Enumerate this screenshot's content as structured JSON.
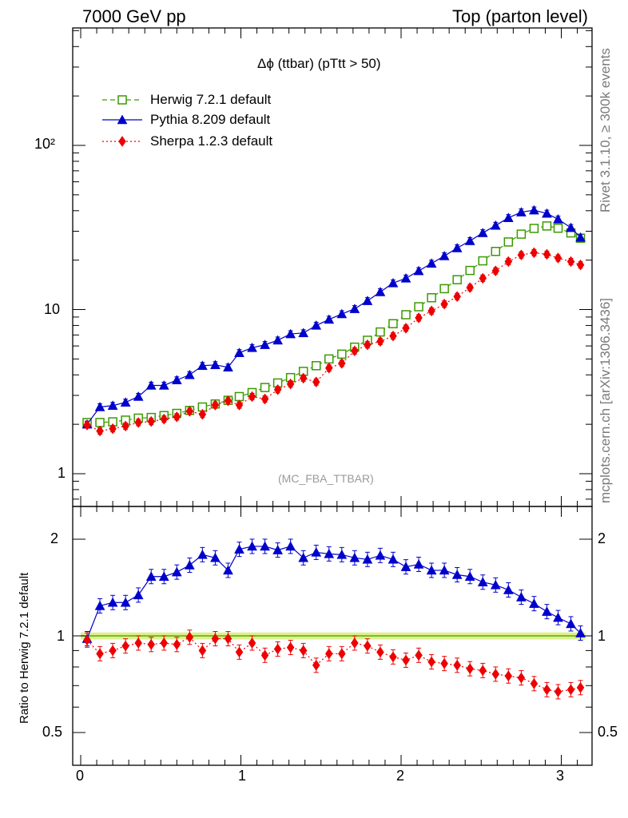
{
  "header": {
    "left": "7000 GeV pp",
    "right": "Top (parton level)"
  },
  "side_labels": {
    "rivet": "Rivet 3.1.10, ≥ 300k events",
    "mcplots": "mcplots.cern.ch [arXiv:1306.3436]"
  },
  "colors": {
    "herwig": "#3a9a00",
    "pythia": "#0000cc",
    "sherpa": "#ee0000",
    "band": "#ddf08a"
  },
  "chart_data": [
    {
      "type": "line",
      "title": "Δϕ (ttbar) (pTtt > 50)",
      "watermark": "(MC_FBA_TTBAR)",
      "xlim": [
        -0.06,
        3.2
      ],
      "ylim": [
        0.6,
        580
      ],
      "yscale": "log",
      "x_ticks": [
        "0",
        "1",
        "2",
        "3"
      ],
      "y_ticks": [
        "1",
        "10",
        "10²"
      ],
      "legend_position": "top-left",
      "x": [
        0.04,
        0.12,
        0.2,
        0.28,
        0.36,
        0.44,
        0.52,
        0.6,
        0.68,
        0.76,
        0.84,
        0.92,
        0.99,
        1.07,
        1.15,
        1.23,
        1.31,
        1.39,
        1.47,
        1.55,
        1.63,
        1.71,
        1.79,
        1.87,
        1.95,
        2.03,
        2.11,
        2.19,
        2.27,
        2.35,
        2.43,
        2.51,
        2.59,
        2.67,
        2.75,
        2.83,
        2.91,
        2.98,
        3.06,
        3.12
      ],
      "series": [
        {
          "name": "Herwig 7.2.1 default",
          "marker": "open-square",
          "values": [
            2.05,
            2.05,
            2.07,
            2.12,
            2.18,
            2.2,
            2.26,
            2.33,
            2.43,
            2.55,
            2.66,
            2.8,
            2.95,
            3.12,
            3.35,
            3.57,
            3.85,
            4.2,
            4.55,
            5.0,
            5.35,
            5.9,
            6.5,
            7.3,
            8.2,
            9.3,
            10.4,
            11.8,
            13.4,
            15.2,
            17.3,
            19.8,
            22.6,
            25.8,
            28.8,
            31.2,
            32.3,
            31.3,
            29.3,
            27.2
          ]
        },
        {
          "name": "Pythia 8.209 default",
          "marker": "filled-triangle",
          "values": [
            2.0,
            2.55,
            2.6,
            2.72,
            2.95,
            3.45,
            3.45,
            3.72,
            4.0,
            4.55,
            4.6,
            4.45,
            5.45,
            5.85,
            6.1,
            6.5,
            7.1,
            7.2,
            8.0,
            8.7,
            9.4,
            10.1,
            11.3,
            12.8,
            14.5,
            15.5,
            17.2,
            19.1,
            21.2,
            23.7,
            26.2,
            29.3,
            32.5,
            36.2,
            39.2,
            40.3,
            38.5,
            35.5,
            31.5,
            27.5
          ]
        },
        {
          "name": "Sherpa 1.2.3 default",
          "marker": "filled-diamond",
          "values": [
            1.98,
            1.82,
            1.88,
            1.95,
            2.05,
            2.08,
            2.15,
            2.22,
            2.4,
            2.3,
            2.62,
            2.78,
            2.62,
            2.95,
            2.85,
            3.25,
            3.52,
            3.82,
            3.62,
            4.4,
            4.7,
            5.6,
            6.1,
            6.4,
            6.9,
            7.7,
            8.9,
            9.8,
            10.8,
            12.0,
            13.6,
            15.5,
            17.2,
            19.6,
            21.5,
            22.2,
            21.7,
            20.6,
            19.6,
            18.7
          ]
        }
      ]
    },
    {
      "type": "line",
      "ylabel": "Ratio to Herwig 7.2.1 default",
      "xlim": [
        -0.06,
        3.2
      ],
      "ylim": [
        0.42,
        2.35
      ],
      "yscale": "log",
      "x_ticks": [
        "0",
        "1",
        "2",
        "3"
      ],
      "y_ticks": [
        "0.5",
        "1",
        "2"
      ],
      "reference": 1.0,
      "x": [
        0.04,
        0.12,
        0.2,
        0.28,
        0.36,
        0.44,
        0.52,
        0.6,
        0.68,
        0.76,
        0.84,
        0.92,
        0.99,
        1.07,
        1.15,
        1.23,
        1.31,
        1.39,
        1.47,
        1.55,
        1.63,
        1.71,
        1.79,
        1.87,
        1.95,
        2.03,
        2.11,
        2.19,
        2.27,
        2.35,
        2.43,
        2.51,
        2.59,
        2.67,
        2.75,
        2.83,
        2.91,
        2.98,
        3.06,
        3.12
      ],
      "series": [
        {
          "name": "Pythia 8.209 default",
          "values": [
            0.98,
            1.24,
            1.27,
            1.27,
            1.34,
            1.53,
            1.53,
            1.58,
            1.66,
            1.79,
            1.75,
            1.6,
            1.86,
            1.9,
            1.9,
            1.85,
            1.9,
            1.75,
            1.82,
            1.8,
            1.79,
            1.75,
            1.73,
            1.78,
            1.73,
            1.64,
            1.67,
            1.6,
            1.6,
            1.55,
            1.53,
            1.47,
            1.44,
            1.39,
            1.32,
            1.26,
            1.19,
            1.14,
            1.09,
            1.02
          ]
        },
        {
          "name": "Sherpa 1.2.3 default",
          "values": [
            0.97,
            0.88,
            0.9,
            0.93,
            0.95,
            0.94,
            0.95,
            0.94,
            0.99,
            0.9,
            0.98,
            0.98,
            0.89,
            0.95,
            0.87,
            0.91,
            0.92,
            0.9,
            0.81,
            0.88,
            0.88,
            0.95,
            0.93,
            0.89,
            0.86,
            0.84,
            0.87,
            0.83,
            0.82,
            0.81,
            0.79,
            0.78,
            0.76,
            0.75,
            0.74,
            0.71,
            0.68,
            0.67,
            0.68,
            0.69
          ]
        }
      ]
    }
  ]
}
